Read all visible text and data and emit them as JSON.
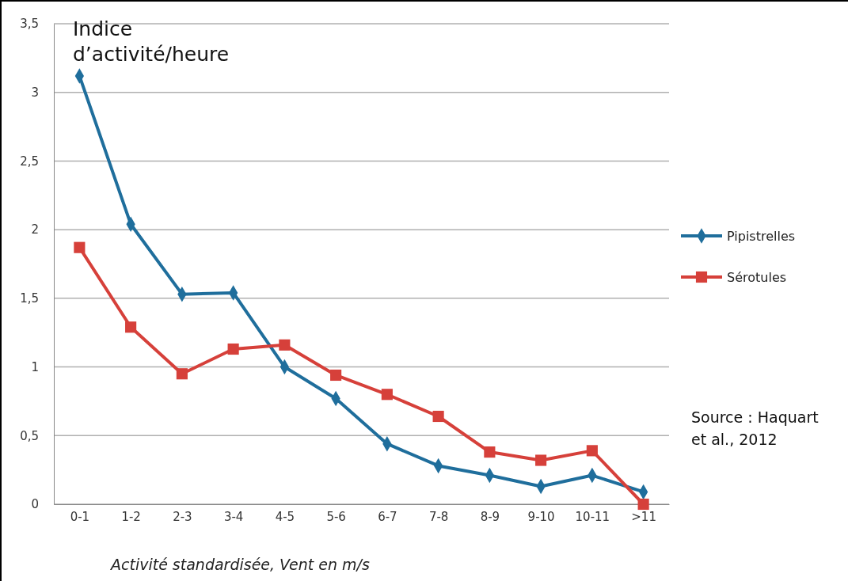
{
  "chart_data": {
    "type": "line",
    "ylabel": "Indice d’activité/heure",
    "xlabel": "Activité standardisée, Vent en m/s",
    "categories": [
      "0-1",
      "1-2",
      "2-3",
      "3-4",
      "4-5",
      "5-6",
      "6-7",
      "7-8",
      "8-9",
      "9-10",
      "10-11",
      ">11"
    ],
    "series": [
      {
        "name": "Pipistrelles",
        "color": "#1f6e9c",
        "marker": "diamond",
        "values": [
          3.12,
          2.04,
          1.53,
          1.54,
          1.0,
          0.77,
          0.44,
          0.28,
          0.21,
          0.13,
          0.21,
          0.09
        ]
      },
      {
        "name": "Sérotules",
        "color": "#d6403a",
        "marker": "square",
        "values": [
          1.87,
          1.29,
          0.95,
          1.13,
          1.16,
          0.94,
          0.8,
          0.64,
          0.38,
          0.32,
          0.39,
          0.0
        ]
      }
    ],
    "ylim": [
      0,
      3.5
    ],
    "yticks": [
      0,
      {
        "value": 0.5,
        "label": "0,5"
      },
      1,
      {
        "value": 1.5,
        "label": "1,5"
      },
      2,
      {
        "value": 2.5,
        "label": "2,5"
      },
      3,
      {
        "value": 3.5,
        "label": "3,5"
      }
    ],
    "grid": "y",
    "legend": "right",
    "line_style": "solid",
    "annotations": [
      "Source : Haquart et al., 2012"
    ]
  }
}
